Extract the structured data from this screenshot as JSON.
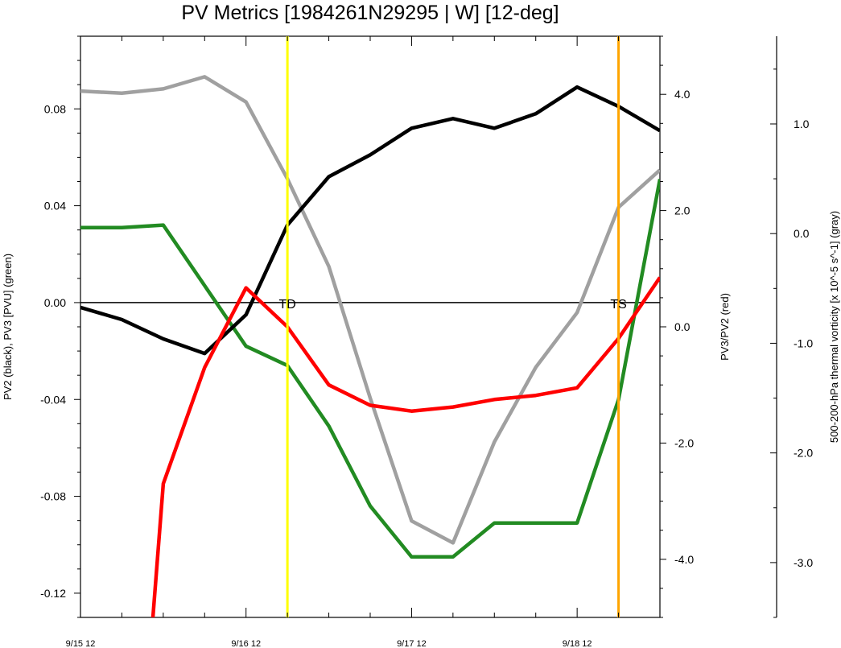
{
  "chart_data": {
    "type": "line",
    "title": "PV Metrics [1984261N29295 | W] [12-deg]",
    "x_tick_labels": [
      "9/15 12",
      "9/16 12",
      "9/17 12",
      "9/18 12"
    ],
    "x_tick_values": [
      0,
      24,
      48,
      72
    ],
    "xlim": [
      0,
      84
    ],
    "left_axis": {
      "label": "PV2 (black), PV3 [PVU] (green)",
      "ylim": [
        -0.13,
        0.11
      ],
      "ticks": [
        0.08,
        0.04,
        0.0,
        -0.04,
        -0.08,
        -0.12
      ],
      "tick_labels": [
        "0.08",
        "0.04",
        "0.00",
        "-0.04",
        "-0.08",
        "-0.12"
      ]
    },
    "right_axis": {
      "label": "PV3/PV2 (red)",
      "ylim": [
        -5.0,
        5.0
      ],
      "ticks": [
        4.0,
        2.0,
        0.0,
        -2.0,
        -4.0
      ],
      "tick_labels": [
        "4.0",
        "2.0",
        "0.0",
        "-2.0",
        "-4.0"
      ]
    },
    "far_right_axis": {
      "label": "500-200-hPa thermal vorticity [x 10^-5 s^-1] (gray)",
      "ylim": [
        -3.5,
        1.8
      ],
      "ticks": [
        1.0,
        0.0,
        -1.0,
        -2.0,
        -3.0
      ],
      "tick_labels": [
        "1.0",
        "0.0",
        "-1.0",
        "-2.0",
        "-3.0"
      ]
    },
    "series": [
      {
        "color": "#000000",
        "axis": "left",
        "x": [
          0,
          6,
          12,
          18,
          24,
          30,
          36,
          42,
          48,
          54,
          60,
          66,
          72,
          78,
          84
        ],
        "values": [
          -0.002,
          -0.007,
          -0.015,
          -0.021,
          -0.005,
          0.032,
          0.052,
          0.061,
          0.072,
          0.076,
          0.072,
          0.078,
          0.089,
          0.081,
          0.071
        ]
      },
      {
        "color": "#228B22",
        "axis": "left",
        "x": [
          0,
          6,
          12,
          18,
          24,
          30,
          36,
          42,
          48,
          54,
          60,
          66,
          72,
          78,
          84
        ],
        "values": [
          0.031,
          0.031,
          0.032,
          0.007,
          -0.018,
          -0.026,
          -0.051,
          -0.084,
          -0.105,
          -0.105,
          -0.091,
          -0.091,
          -0.091,
          -0.04,
          0.051
        ]
      },
      {
        "color": "#FF0000",
        "axis": "right",
        "x": [
          10.5,
          12,
          18,
          24,
          30,
          36,
          42,
          48,
          54,
          60,
          66,
          72,
          78,
          84
        ],
        "values": [
          -5.0,
          -2.7,
          -0.7,
          0.67,
          0.0,
          -1.0,
          -1.35,
          -1.45,
          -1.38,
          -1.25,
          -1.18,
          -1.05,
          -0.2,
          0.85
        ]
      },
      {
        "color": "#A0A0A0",
        "axis": "far_right",
        "x": [
          0,
          6,
          12,
          18,
          24,
          30,
          36,
          42,
          48,
          54,
          60,
          66,
          72,
          78,
          84
        ],
        "values": [
          1.3,
          1.28,
          1.32,
          1.43,
          1.2,
          0.5,
          -0.3,
          -1.5,
          -2.62,
          -2.82,
          -1.9,
          -1.22,
          -0.72,
          0.24,
          0.58
        ]
      }
    ],
    "zero_line": 0.0,
    "events": [
      {
        "x": 30,
        "label": "TD",
        "color": "#FFFF00"
      },
      {
        "x": 78,
        "label": "TS",
        "color": "#FFA500"
      }
    ]
  }
}
